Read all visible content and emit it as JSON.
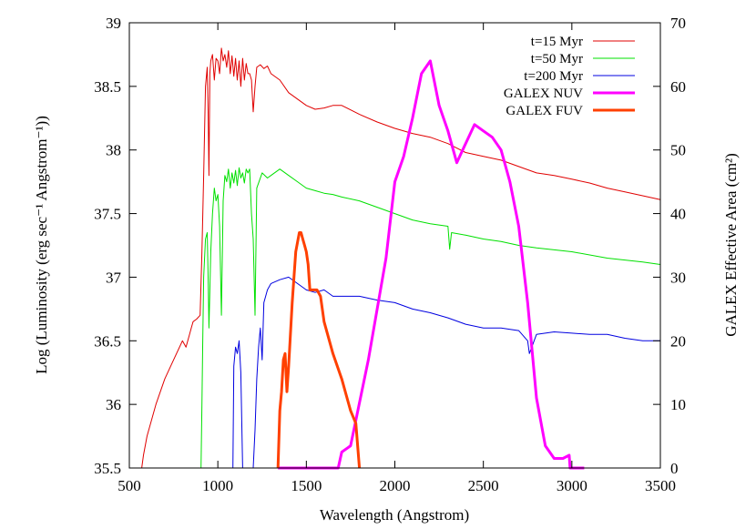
{
  "chart_data": {
    "type": "line",
    "xlabel": "Wavelength (Angstrom)",
    "ylabel": "Log (Luminosity (erg sec⁻¹ Angstrom⁻¹))",
    "y2label": "GALEX Effective Area (cm²)",
    "xlim": [
      500,
      3500
    ],
    "ylim": [
      35.5,
      39
    ],
    "y2lim": [
      0,
      70
    ],
    "xticks": [
      "500",
      "1000",
      "1500",
      "2000",
      "2500",
      "3000",
      "3500"
    ],
    "yticks": [
      "35.5",
      "36",
      "36.5",
      "37",
      "37.5",
      "38",
      "38.5",
      "39"
    ],
    "y2ticks": [
      "0",
      "10",
      "20",
      "30",
      "40",
      "50",
      "60",
      "70"
    ],
    "grid": false,
    "legend_position": "top-right",
    "series": [
      {
        "name": "t=15 Myr",
        "axis": "left",
        "color": "#e00000",
        "width": 1,
        "x": [
          570,
          580,
          600,
          650,
          700,
          750,
          800,
          820,
          840,
          850,
          860,
          880,
          900,
          910,
          920,
          930,
          940,
          945,
          950,
          955,
          960,
          970,
          980,
          990,
          1000,
          1010,
          1020,
          1030,
          1040,
          1050,
          1060,
          1070,
          1080,
          1090,
          1100,
          1110,
          1120,
          1130,
          1140,
          1150,
          1160,
          1170,
          1180,
          1190,
          1200,
          1210,
          1220,
          1240,
          1260,
          1280,
          1300,
          1350,
          1400,
          1450,
          1500,
          1550,
          1600,
          1650,
          1700,
          1800,
          1900,
          2000,
          2100,
          2200,
          2300,
          2400,
          2500,
          2600,
          2700,
          2800,
          2900,
          3000,
          3100,
          3200,
          3300,
          3400,
          3500
        ],
        "y": [
          35.5,
          35.6,
          35.75,
          36.0,
          36.2,
          36.35,
          36.5,
          36.45,
          36.55,
          36.6,
          36.65,
          36.67,
          36.7,
          37.2,
          37.8,
          38.5,
          38.65,
          38.3,
          37.8,
          38.6,
          38.7,
          38.75,
          38.55,
          38.72,
          38.7,
          38.6,
          38.8,
          38.7,
          38.75,
          38.65,
          38.78,
          38.6,
          38.74,
          38.58,
          38.72,
          38.55,
          38.7,
          38.5,
          38.72,
          38.55,
          38.68,
          38.6,
          38.6,
          38.55,
          38.3,
          38.5,
          38.65,
          38.67,
          38.64,
          38.66,
          38.6,
          38.55,
          38.45,
          38.4,
          38.35,
          38.32,
          38.33,
          38.35,
          38.35,
          38.28,
          38.22,
          38.17,
          38.13,
          38.1,
          38.05,
          37.98,
          37.95,
          37.92,
          37.87,
          37.82,
          37.8,
          37.77,
          37.74,
          37.7,
          37.67,
          37.64,
          37.61
        ]
      },
      {
        "name": "t=50 Myr",
        "axis": "left",
        "color": "#00e000",
        "width": 1,
        "x": [
          905,
          910,
          915,
          920,
          930,
          940,
          945,
          950,
          960,
          970,
          980,
          990,
          1000,
          1010,
          1020,
          1030,
          1040,
          1050,
          1060,
          1070,
          1080,
          1090,
          1100,
          1110,
          1120,
          1130,
          1140,
          1150,
          1160,
          1170,
          1180,
          1190,
          1200,
          1210,
          1220,
          1250,
          1280,
          1300,
          1350,
          1400,
          1450,
          1500,
          1550,
          1600,
          1650,
          1700,
          1800,
          1900,
          2000,
          2100,
          2200,
          2300,
          2310,
          2320,
          2400,
          2500,
          2600,
          2700,
          2800,
          3000,
          3200,
          3400,
          3500
        ],
        "y": [
          35.5,
          36.0,
          36.5,
          37.0,
          37.3,
          37.35,
          37.0,
          36.6,
          37.2,
          37.5,
          37.7,
          37.6,
          37.65,
          37.4,
          36.7,
          37.6,
          37.8,
          37.75,
          37.85,
          37.7,
          37.82,
          37.74,
          37.84,
          37.72,
          37.86,
          37.78,
          37.82,
          37.74,
          37.85,
          37.82,
          37.85,
          37.5,
          37.3,
          36.7,
          37.7,
          37.82,
          37.78,
          37.8,
          37.85,
          37.8,
          37.75,
          37.7,
          37.68,
          37.66,
          37.65,
          37.63,
          37.6,
          37.55,
          37.5,
          37.45,
          37.42,
          37.4,
          37.22,
          37.35,
          37.33,
          37.3,
          37.28,
          37.25,
          37.23,
          37.2,
          37.15,
          37.12,
          37.1
        ]
      },
      {
        "name": "t=200 Myr",
        "axis": "left",
        "color": "#0000e0",
        "width": 1,
        "x": [
          1085,
          1090,
          1100,
          1110,
          1120,
          1130,
          1140,
          1150,
          1160,
          1170,
          1180,
          1190,
          1200,
          1210,
          1220,
          1230,
          1240,
          1250,
          1260,
          1280,
          1300,
          1350,
          1400,
          1450,
          1500,
          1550,
          1600,
          1650,
          1700,
          1800,
          1900,
          2000,
          2100,
          2200,
          2300,
          2400,
          2500,
          2600,
          2700,
          2750,
          2760,
          2800,
          2900,
          3000,
          3100,
          3200,
          3300,
          3400,
          3500
        ],
        "y": [
          35.5,
          36.3,
          36.45,
          36.4,
          36.5,
          36.25,
          35.5,
          35.5,
          35.5,
          35.5,
          35.5,
          35.5,
          35.5,
          35.8,
          36.2,
          36.45,
          36.6,
          36.35,
          36.8,
          36.9,
          36.95,
          36.98,
          37.0,
          36.95,
          36.9,
          36.88,
          36.9,
          36.85,
          36.85,
          36.85,
          36.82,
          36.8,
          36.75,
          36.72,
          36.68,
          36.63,
          36.6,
          36.6,
          36.58,
          36.5,
          36.4,
          36.55,
          36.57,
          36.56,
          36.55,
          36.55,
          36.52,
          36.5,
          36.5
        ]
      },
      {
        "name": "GALEX NUV",
        "axis": "right",
        "color": "#ff00ff",
        "width": 3,
        "x": [
          1340,
          1680,
          1700,
          1750,
          1850,
          1950,
          2000,
          2050,
          2100,
          2150,
          2200,
          2250,
          2300,
          2350,
          2400,
          2450,
          2500,
          2550,
          2600,
          2650,
          2700,
          2750,
          2800,
          2850,
          2900,
          2950,
          2985,
          2990,
          3000,
          3050,
          3070
        ],
        "y": [
          0,
          0,
          2.5,
          3.5,
          17,
          33,
          45,
          49,
          55,
          62,
          64,
          57,
          53,
          48,
          51,
          54,
          53,
          52,
          50,
          45,
          38,
          26,
          11,
          3.5,
          1.5,
          1.5,
          2,
          0,
          0,
          0,
          0
        ]
      },
      {
        "name": "GALEX FUV",
        "axis": "right",
        "color": "#ff4000",
        "width": 3,
        "x": [
          1340,
          1350,
          1360,
          1370,
          1380,
          1390,
          1400,
          1420,
          1440,
          1460,
          1470,
          1480,
          1490,
          1500,
          1510,
          1520,
          1540,
          1560,
          1580,
          1600,
          1650,
          1700,
          1750,
          1780,
          1800
        ],
        "y": [
          0,
          9,
          12,
          17,
          18,
          12,
          16,
          26,
          34,
          37,
          37,
          36,
          35,
          34,
          32,
          28,
          28,
          28,
          27,
          23,
          18,
          14,
          9,
          7,
          0
        ]
      }
    ]
  }
}
